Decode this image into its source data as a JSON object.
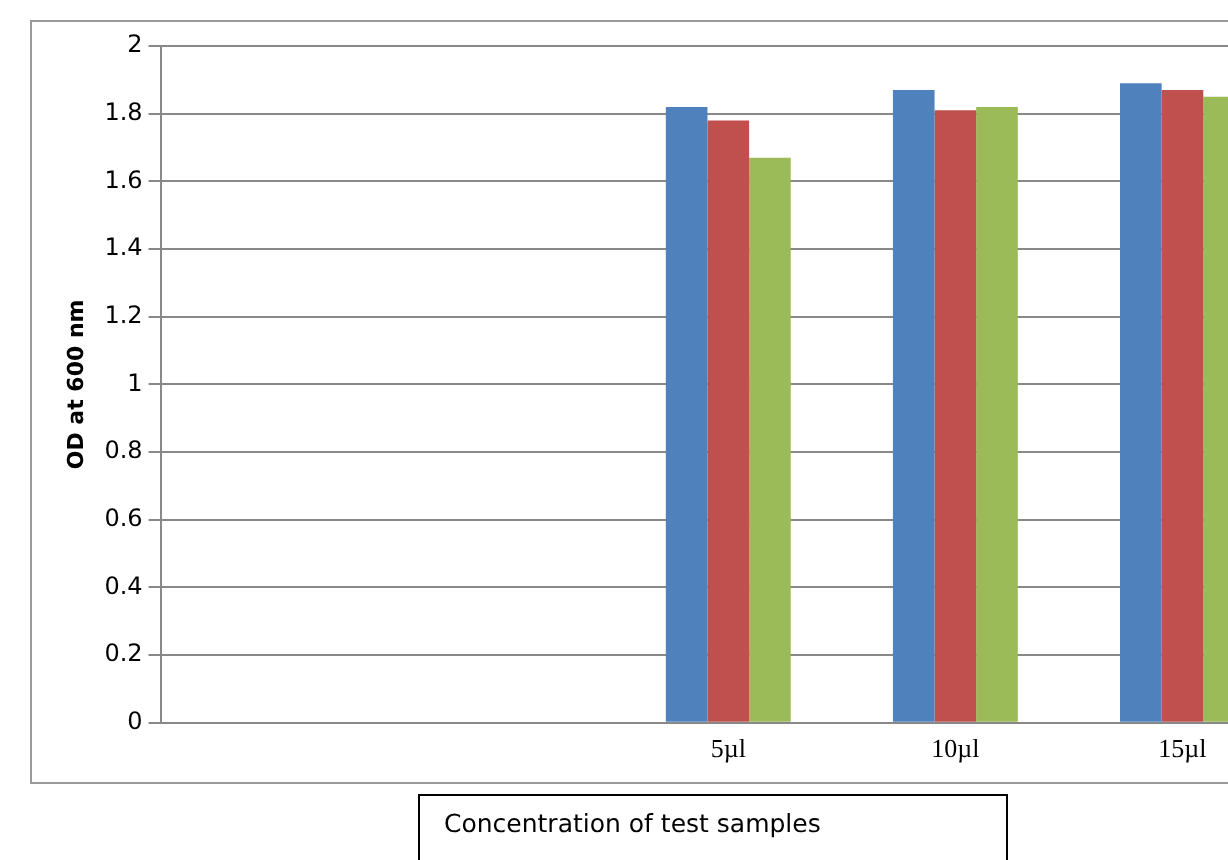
{
  "chart_data": {
    "type": "bar",
    "ylabel": "OD at 600 nm",
    "xlabel": "Concentration of test samples",
    "categories": [
      null,
      null,
      "5µl",
      "10µl",
      "15µl"
    ],
    "series": [
      {
        "color": "#4f81bd",
        "values": [
          null,
          null,
          1.82,
          1.87,
          1.89
        ]
      },
      {
        "color": "#c0504d",
        "values": [
          null,
          null,
          1.78,
          1.81,
          1.87
        ]
      },
      {
        "color": "#9bbb59",
        "values": [
          null,
          null,
          1.67,
          1.82,
          1.85
        ]
      }
    ],
    "ylim": [
      0,
      2
    ],
    "yticks": [
      0,
      0.2,
      0.4,
      0.6,
      0.8,
      1,
      1.2,
      1.4,
      1.6,
      1.8,
      2
    ],
    "grid": "y",
    "legend": false
  }
}
